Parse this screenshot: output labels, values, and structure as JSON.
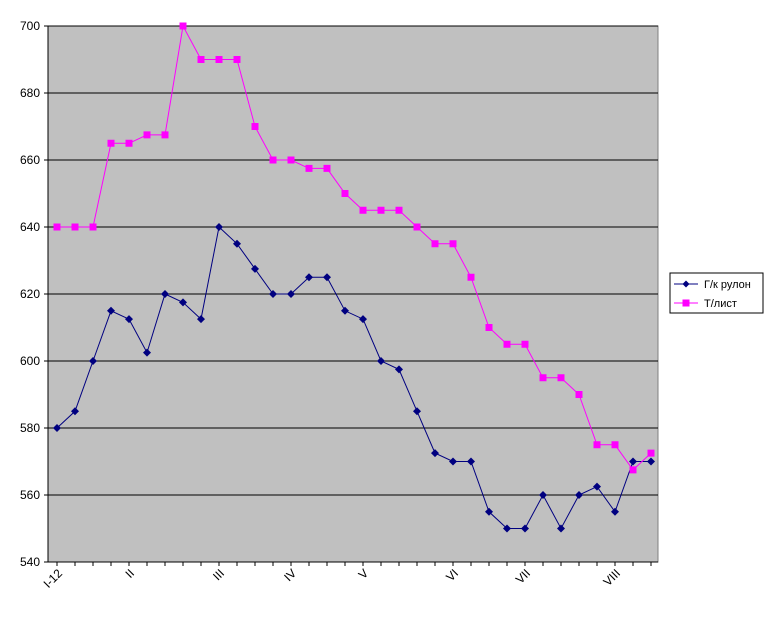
{
  "chart_data": {
    "type": "line",
    "ylim": [
      540,
      700
    ],
    "yticks": [
      540,
      560,
      580,
      600,
      620,
      640,
      660,
      680,
      700
    ],
    "grid": true,
    "legend_position": "right",
    "x_month_labels": [
      {
        "index": 0,
        "label": "I-12"
      },
      {
        "index": 4,
        "label": "II"
      },
      {
        "index": 9,
        "label": "III"
      },
      {
        "index": 13,
        "label": "IV"
      },
      {
        "index": 17,
        "label": "V"
      },
      {
        "index": 22,
        "label": "VI"
      },
      {
        "index": 26,
        "label": "VII"
      },
      {
        "index": 31,
        "label": "VIII"
      }
    ],
    "series": [
      {
        "name": "Г/к рулон",
        "color": "#000080",
        "marker": "diamond",
        "values": [
          580,
          585,
          600,
          615,
          612.5,
          602.5,
          620,
          617.5,
          612.5,
          640,
          635,
          627.5,
          620,
          620,
          625,
          625,
          615,
          612.5,
          600,
          597.5,
          585,
          572.5,
          570,
          570,
          555,
          550,
          550,
          560,
          550,
          560,
          562.5,
          555,
          570,
          570
        ]
      },
      {
        "name": "Т/лист",
        "color": "#FF00FF",
        "marker": "square",
        "values": [
          640,
          640,
          640,
          665,
          665,
          667.5,
          667.5,
          700,
          690,
          690,
          690,
          670,
          660,
          660,
          657.5,
          657.5,
          650,
          645,
          645,
          645,
          640,
          635,
          635,
          625,
          610,
          605,
          605,
          595,
          595,
          590,
          575,
          575,
          567.5,
          572.5
        ]
      }
    ]
  }
}
